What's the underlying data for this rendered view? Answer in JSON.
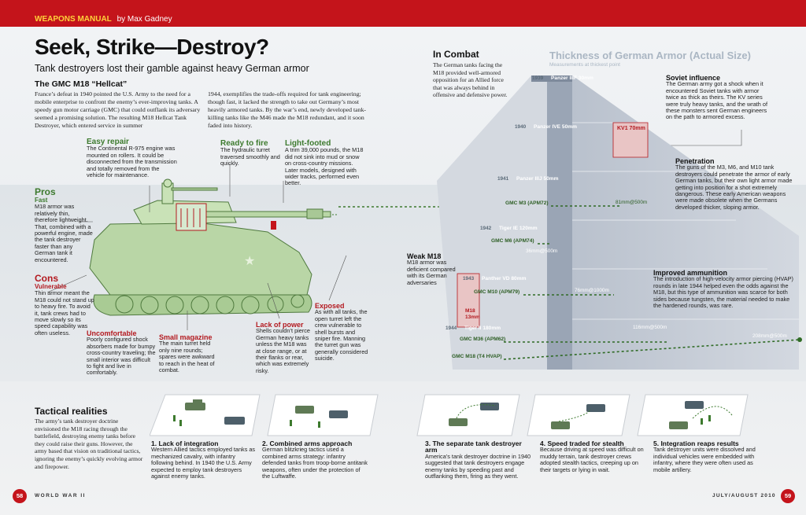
{
  "header": {
    "section": "WEAPONS MANUAL",
    "byline": "by Max Gadney"
  },
  "title": "Seek, Strike—Destroy?",
  "subtitle": "Tank destroyers lost their gamble against heavy German armor",
  "intro": {
    "heading": "The GMC M18 “Hellcat”",
    "col1": "France’s defeat in 1940 pointed the U.S. Army to the need for a mobile enterprise to confront the enemy’s ever-improving tanks. A speedy gun motor carriage (GMC) that could outflank its adversary seemed a promising solution. The resulting M18 Hellcat Tank Destroyer, which entered service in summer",
    "col2": "1944, exemplifies the trade-offs required for tank engineering; though fast, it lacked the strength to take out Germany’s most heavily armored tanks. By the war’s end, newly developed tank-killing tanks like the M46 made the M18 redundant, and it soon faded into history."
  },
  "callouts": {
    "easy_repair": {
      "title": "Easy repair",
      "text": "The Continental R-975 engine was mounted on rollers. It could be disconnected from the transmission and totally removed from the vehicle for maintenance."
    },
    "ready_to_fire": {
      "title": "Ready to fire",
      "text": "The hydraulic turret traversed smoothly and quickly."
    },
    "light_footed": {
      "title": "Light-footed",
      "text": "A trim 39,000 pounds, the M18 did not sink into mud or snow on cross-country missions. Later models, designed with wider tracks, performed even better."
    },
    "pros": {
      "title": "Pros",
      "sub": "Fast",
      "text": "M18 armor was relatively thin, therefore lightweight. That, combined with a powerful engine, made the tank destroyer faster than any German tank it encountered."
    },
    "cons": {
      "title": "Cons",
      "sub": "Vulnerable",
      "text": "Thin armor meant the M18 could not stand up to heavy fire. To avoid it, tank crews had to move slowly so its speed capability was often useless."
    },
    "uncomfortable": {
      "title": "Uncomfortable",
      "text": "Poorly configured shock absorbers made for bumpy cross-country traveling; the small interior was difficult to fight and live in comfortably."
    },
    "small_magazine": {
      "title": "Small magazine",
      "text": "The main turret held only nine rounds; spares were awkward to reach in the heat of combat."
    },
    "lack_of_power": {
      "title": "Lack of power",
      "text": "Shells couldn’t pierce German heavy tanks unless the M18 was at close range, or at their flanks or rear, which was extremely risky."
    },
    "exposed": {
      "title": "Exposed",
      "text": "As with all tanks, the open turret left the crew vulnerable to shell bursts and sniper fire. Manning the turret gun was generally considered suicide."
    }
  },
  "combat": {
    "heading": "In Combat",
    "text": "The German tanks facing the M18 provided well-armored opposition for an Allied force that was always behind in offensive and defensive power."
  },
  "armor_chart": {
    "title": "Thickness of German Armor (Actual Size)",
    "note": "Measurements at thickest point",
    "years": [
      "1939",
      "1940",
      "1941",
      "1942",
      "1943",
      "1944"
    ],
    "german": [
      "Panzer IIIF 30mm",
      "Panzer IVE 50mm",
      "Panzer IIIJ 50mm",
      "Tiger IE 120mm",
      "Panther VD 80mm",
      "Tiger II 180mm"
    ],
    "kv": "KV1 70mm",
    "m18": "M18\n13mm",
    "us_guns": [
      "GMC M3 (APM72)",
      "GMC M6 (APM74)",
      "GMC M10 (APM79)",
      "GMC M36 (APM62)",
      "GMC M18 (T4 HVAP)"
    ],
    "ranges": [
      "81mm@500m",
      "36mm@500m",
      "76mm@1000m",
      "116mm@500m",
      "208mm@500m"
    ],
    "soviet": {
      "title": "Soviet influence",
      "text": "The German army got a shock when it encountered Soviet tanks with armor twice as thick as theirs. The KV series were truly heavy tanks, and the wrath of these monsters sent German engineers on the path to armored excess."
    },
    "penetration": {
      "title": "Penetration",
      "text": "The guns of the M3, M6, and M10 tank destroyers could penetrate the armor of early German tanks, but their own light armor made getting into position for a shot extremely dangerous. These early American weapons were made obsolete when the Germans developed thicker, sloping armor."
    },
    "weak": {
      "title": "Weak M18",
      "text": "M18 armor was deficient compared with its German adversaries"
    },
    "improved": {
      "title": "Improved ammunition",
      "text": "The introduction of high-velocity armor piercing (HVAP) rounds in late 1944 helped even the odds against the M18, but this type of ammunition was scarce for both sides because tungsten, the material needed to make the hardened rounds, was rare."
    }
  },
  "tactics": {
    "heading": "Tactical realities",
    "text": "The army’s tank destroyer doctrine envisioned the M18 racing through the battlefield, destroying enemy tanks before they could raise their guns. However, the army based that vision on traditional tactics, ignoring the enemy’s quickly evolving armor and firepower.",
    "steps": [
      {
        "title": "1. Lack of integration",
        "text": "Western Allied tactics employed tanks as mechanized cavalry, with infantry following behind. In 1940 the U.S. Army expected to employ tank destroyers against enemy tanks."
      },
      {
        "title": "2. Combined arms approach",
        "text": "German blitzkrieg tactics used a combined arms strategy: infantry defended tanks from troop-borne antitank weapons, often under the protection of the Luftwaffe."
      },
      {
        "title": "3. The separate tank destroyer arm",
        "text": "America’s tank destroyer doctrine in 1940 suggested that tank destroyers engage enemy tanks by speeding past and outflanking them, firing as they went."
      },
      {
        "title": "4. Speed traded for stealth",
        "text": "Because driving at speed was difficult on muddy terrain, tank destroyer crews adopted stealth tactics, creeping up on their targets or lying in wait."
      },
      {
        "title": "5. Integration reaps results",
        "text": "Tank destroyer units were dissolved and individual vehicles were embedded with infantry, where they were often used as mobile artillery."
      }
    ]
  },
  "footer": {
    "left_page": "58",
    "left_label": "WORLD WAR II",
    "right_label": "JULY/AUGUST 2010",
    "right_page": "59"
  },
  "colors": {
    "red": "#c4141b",
    "green": "#3d7a2e",
    "tank": "#b9d6a6",
    "armor": "#c6ccd6"
  }
}
